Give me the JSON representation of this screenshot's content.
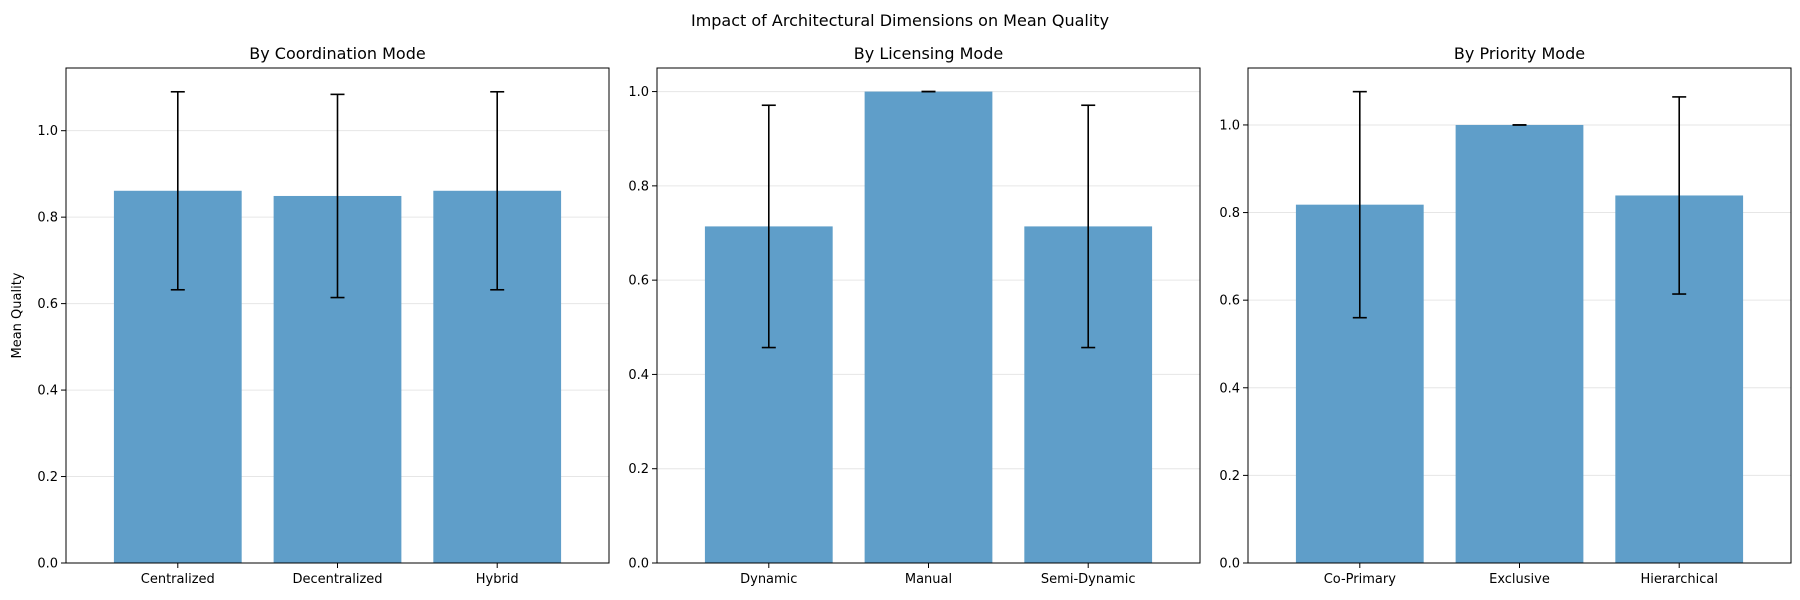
{
  "figure": {
    "title": "Impact of Architectural Dimensions on Mean Quality"
  },
  "colors": {
    "bar": "#5f9ec9",
    "errorbar": "#000000",
    "grid": "#e6e6e6",
    "axis": "#000000"
  },
  "chart_data": [
    {
      "type": "bar",
      "title": "By Coordination Mode",
      "xlabel": "",
      "ylabel": "Mean Quality",
      "categories": [
        "Centralized",
        "Decentralized",
        "Hybrid"
      ],
      "values": [
        0.861,
        0.849,
        0.861
      ],
      "error": [
        0.229,
        0.235,
        0.229
      ],
      "ylim": [
        0,
        1.145
      ],
      "yticks": [
        0.0,
        0.2,
        0.4,
        0.6,
        0.8,
        1.0
      ],
      "ytick_labels": [
        "0.0",
        "0.2",
        "0.4",
        "0.6",
        "0.8",
        "1.0"
      ],
      "grid": "y"
    },
    {
      "type": "bar",
      "title": "By Licensing Mode",
      "xlabel": "",
      "ylabel": "",
      "categories": [
        "Dynamic",
        "Manual",
        "Semi-Dynamic"
      ],
      "values": [
        0.714,
        1.0,
        0.714
      ],
      "error": [
        0.257,
        0.0,
        0.257
      ],
      "ylim": [
        0,
        1.05
      ],
      "yticks": [
        0.0,
        0.2,
        0.4,
        0.6,
        0.8,
        1.0
      ],
      "ytick_labels": [
        "0.0",
        "0.2",
        "0.4",
        "0.6",
        "0.8",
        "1.0"
      ],
      "grid": "y"
    },
    {
      "type": "bar",
      "title": "By Priority Mode",
      "xlabel": "",
      "ylabel": "",
      "categories": [
        "Co-Primary",
        "Exclusive",
        "Hierarchical"
      ],
      "values": [
        0.818,
        1.0,
        0.839
      ],
      "error": [
        0.258,
        0.0,
        0.225
      ],
      "ylim": [
        0,
        1.13
      ],
      "yticks": [
        0.0,
        0.2,
        0.4,
        0.6,
        0.8,
        1.0
      ],
      "ytick_labels": [
        "0.0",
        "0.2",
        "0.4",
        "0.6",
        "0.8",
        "1.0"
      ],
      "grid": "y"
    }
  ]
}
